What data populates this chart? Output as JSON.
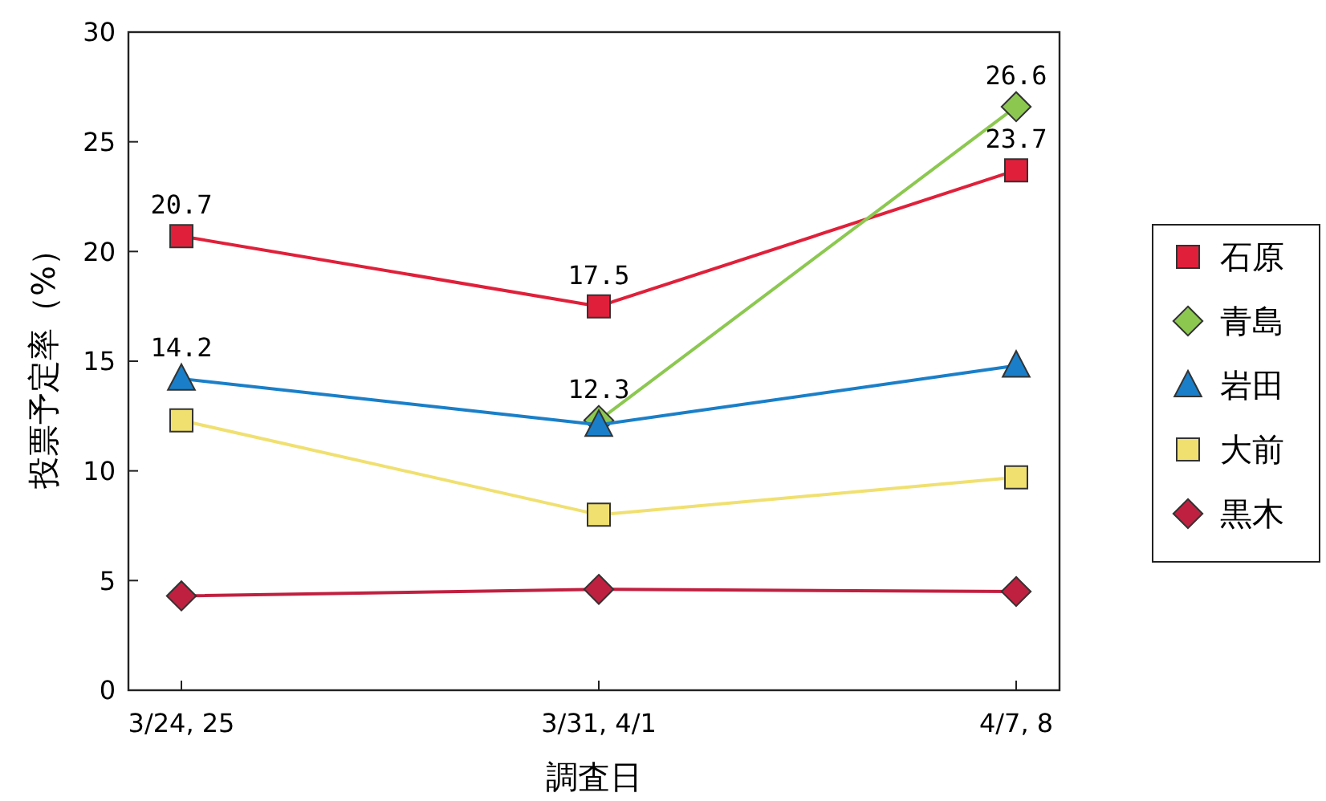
{
  "chart_data": {
    "type": "line",
    "xlabel": "調査日",
    "ylabel": "投票予定率（%）",
    "categories": [
      "3/24, 25",
      "3/31, 4/1",
      "4/7, 8"
    ],
    "ylim": [
      0,
      30
    ],
    "yticks": [
      0,
      5,
      10,
      15,
      20,
      25,
      30
    ],
    "grid": false,
    "legend": "right",
    "series": [
      {
        "name": "石原",
        "color": "#e0203a",
        "marker": "square",
        "values": [
          20.7,
          17.5,
          23.7
        ],
        "value_labels": [
          "20.7",
          "17.5",
          "23.7"
        ]
      },
      {
        "name": "青島",
        "color": "#8cc850",
        "marker": "diamond",
        "values": [
          null,
          12.3,
          26.6
        ],
        "value_labels": [
          null,
          "12.3",
          "26.6"
        ]
      },
      {
        "name": "岩田",
        "color": "#1a7fc8",
        "marker": "triangle",
        "values": [
          14.2,
          12.1,
          14.8
        ],
        "value_labels": [
          "14.2",
          null,
          null
        ]
      },
      {
        "name": "大前",
        "color": "#f0e070",
        "marker": "square",
        "values": [
          12.3,
          8.0,
          9.7
        ]
      },
      {
        "name": "黒木",
        "color": "#c02040",
        "marker": "diamond",
        "values": [
          4.3,
          4.6,
          4.5
        ]
      }
    ]
  }
}
